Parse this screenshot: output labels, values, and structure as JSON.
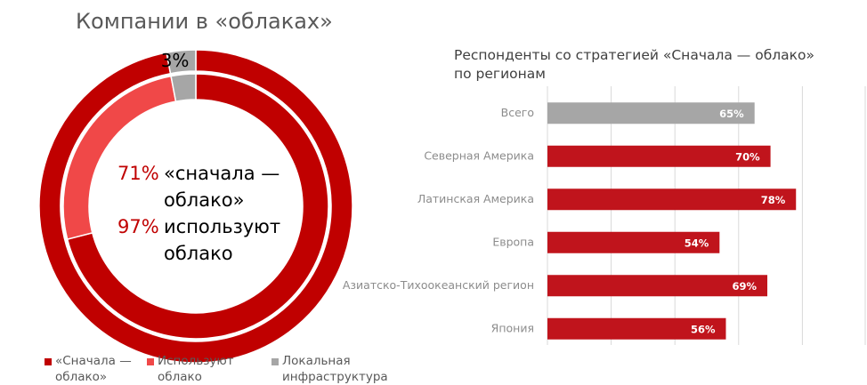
{
  "chart_data": [
    {
      "type": "donut",
      "title": "Компании в «облаках»",
      "series": [
        {
          "name": "«Сначала — облако»",
          "color": "#c00000",
          "values": [
            97,
            71
          ]
        },
        {
          "name": "Используют облако",
          "color": "#f04848",
          "values": [
            0,
            26
          ]
        },
        {
          "name": "Локальная инфраструктура",
          "color": "#a6a6a6",
          "values": [
            3,
            3
          ],
          "value_labels": [
            "3%",
            null
          ]
        }
      ],
      "center_labels": [
        {
          "value": 71,
          "label": "71%",
          "text": "«сначала — облако»"
        },
        {
          "value": 97,
          "label": "97%",
          "text": "используют облако"
        }
      ]
    },
    {
      "type": "hbar",
      "title": "Респонденты со стратегией «Сначала — облако» по регионам",
      "categories": [
        "Всего",
        "Северная Америка",
        "Латинская Америка",
        "Европа",
        "Азиатско-Тихоокеанский регион",
        "Япония"
      ],
      "values": [
        65,
        70,
        78,
        54,
        69,
        56
      ],
      "value_labels": [
        "65%",
        "70%",
        "78%",
        "54%",
        "69%",
        "56%"
      ],
      "colors": [
        "#a6a6a6",
        "#c0141c",
        "#c0141c",
        "#c0141c",
        "#c0141c",
        "#c0141c"
      ],
      "xlim": [
        0,
        100
      ],
      "xticks": [
        0,
        20,
        40,
        60,
        80,
        100
      ],
      "grid": true
    }
  ]
}
